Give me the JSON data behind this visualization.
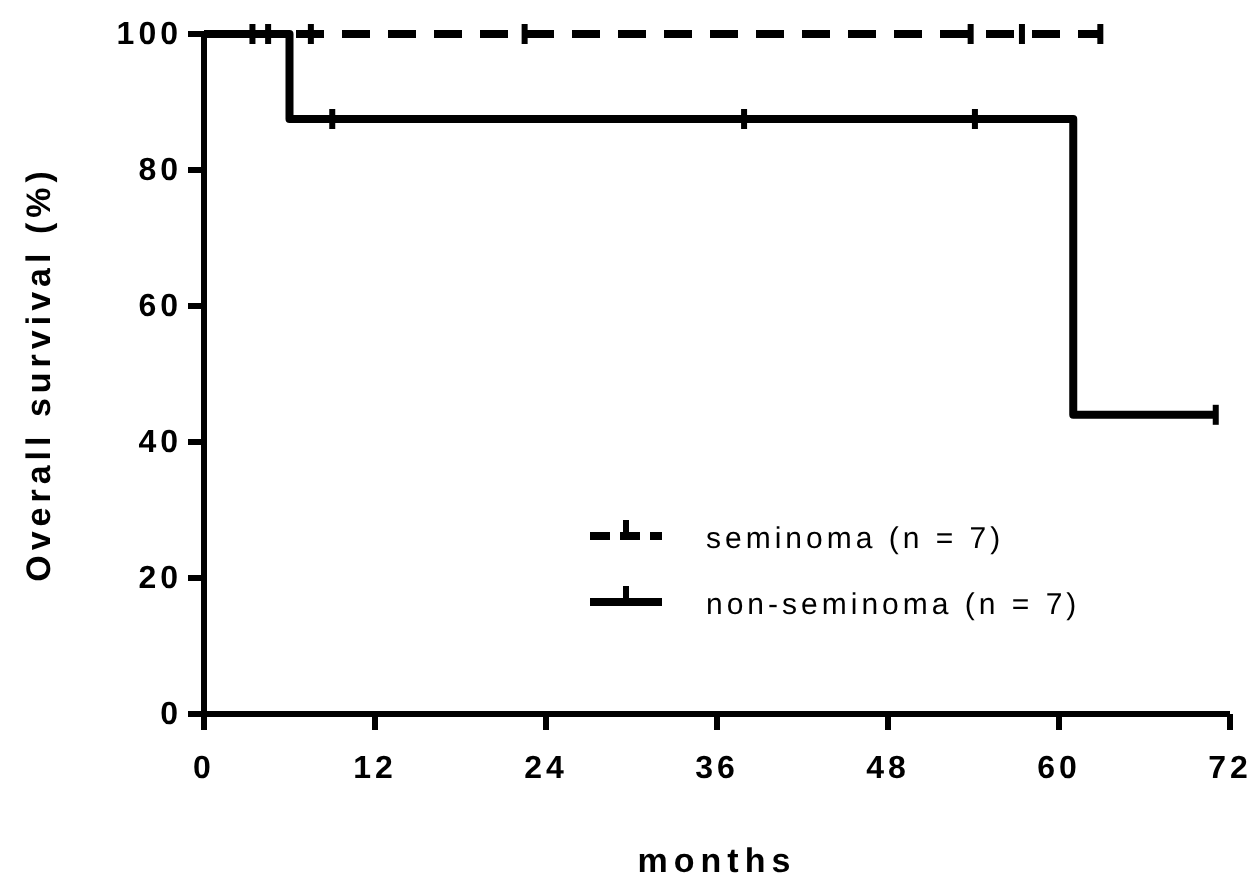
{
  "chart_data": {
    "type": "step",
    "xlabel": "months",
    "ylabel": "Overall survival (%)",
    "xlim": [
      0,
      72
    ],
    "xticks": [
      0,
      12,
      24,
      36,
      48,
      60,
      72
    ],
    "ylim": [
      0,
      100
    ],
    "yticks": [
      0,
      20,
      40,
      60,
      80,
      100
    ],
    "legend": "bottom right",
    "grid": false,
    "series": [
      {
        "name": "seminoma (n = 7)",
        "color": "#000000",
        "line_style": "dashed",
        "x": [
          0,
          63
        ],
        "values": [
          100,
          100
        ]
      },
      {
        "name": "non-seminoma (n = 7)",
        "color": "#000000",
        "line_style": "solid",
        "x": [
          0,
          6,
          61,
          71
        ],
        "values": [
          100,
          87.5,
          44,
          44
        ]
      },
      {
        "type": "scatter",
        "color": "#000000",
        "x": [
          3.4,
          4.5,
          7.5,
          22.5,
          53.8,
          57.4,
          62.9
        ],
        "values": [
          100,
          100,
          100,
          100,
          100,
          100,
          100
        ]
      },
      {
        "type": "scatter",
        "color": "#000000",
        "x": [
          9,
          37.9,
          54.1,
          71
        ],
        "values": [
          87.5,
          87.5,
          87.5,
          44
        ]
      }
    ]
  }
}
